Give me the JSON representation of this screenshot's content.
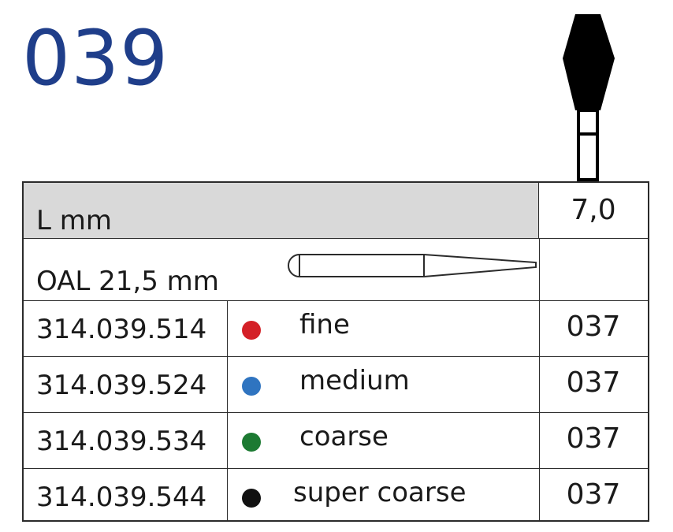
{
  "title": "039",
  "table": {
    "length_label": "L mm",
    "length_value": "7,0",
    "oal_label": "OAL 21,5 mm",
    "rows": [
      {
        "code": "314.039.514",
        "grit": "fine",
        "color": "#d42027",
        "size": "037"
      },
      {
        "code": "314.039.524",
        "grit": "medium",
        "color": "#2f74c0",
        "size": "037"
      },
      {
        "code": "314.039.534",
        "grit": "coarse",
        "color": "#1c7a32",
        "size": "037"
      },
      {
        "code": "314.039.544",
        "grit": "super coarse",
        "color": "#111111",
        "size": "037"
      }
    ]
  },
  "icons": {
    "bur": "bur-head-icon",
    "shank": "shank-outline-icon"
  }
}
